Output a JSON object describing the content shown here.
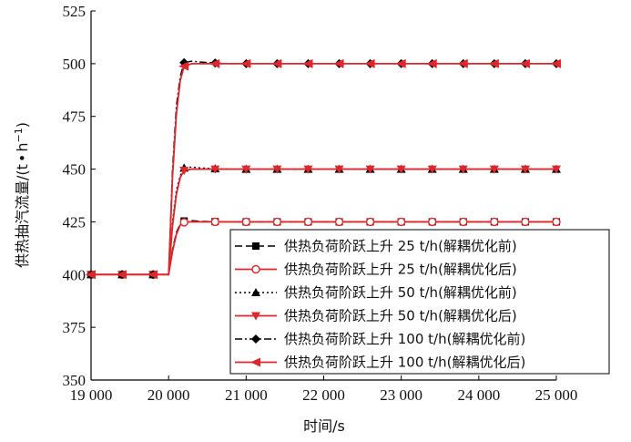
{
  "chart_data": {
    "type": "line",
    "xlabel": "时间/s",
    "ylabel": "供热抽汽流量/(t·h⁻¹)",
    "ylabel_main": "供热抽汽流量/(t",
    "ylabel_dot": "•",
    "ylabel_h": "h",
    "ylabel_sup": "−1",
    "ylabel_close": ")",
    "xlim": [
      19000,
      25000
    ],
    "ylim": [
      350,
      525
    ],
    "x_ticks": [
      19000,
      20000,
      21000,
      22000,
      23000,
      24000,
      25000
    ],
    "x_tick_labels": [
      "19 000",
      "20 000",
      "21 000",
      "22 000",
      "23 000",
      "24 000",
      "25 000"
    ],
    "y_ticks": [
      350,
      375,
      400,
      425,
      450,
      475,
      500,
      525
    ],
    "y_tick_labels": [
      "350",
      "375",
      "400",
      "425",
      "450",
      "475",
      "500",
      "525"
    ],
    "grid": false,
    "legend_position": "lower-right",
    "series": [
      {
        "name": "供热负荷阶跃上升 25 t/h(解耦优化前)",
        "color": "#000000",
        "dash": "8,4",
        "marker": "square",
        "x": [
          19000,
          19400,
          19800,
          20000,
          20050,
          20100,
          20150,
          20200,
          20300,
          20400,
          20600,
          20800,
          21000,
          21400,
          21800,
          22200,
          22600,
          23000,
          23400,
          23800,
          24200,
          24600,
          25000
        ],
        "y": [
          400,
          400,
          400,
          400,
          412,
          420,
          424,
          425.4,
          425.6,
          425.3,
          425.1,
          425,
          425,
          425,
          425,
          425,
          425,
          425,
          425,
          425,
          425,
          425,
          425
        ],
        "marker_x": [
          19000,
          19400,
          19800,
          20200,
          20600,
          21000,
          21400,
          21800,
          22200,
          22600,
          23000,
          23400,
          23800,
          24200,
          24600,
          25000
        ]
      },
      {
        "name": "供热负荷阶跃上升 25 t/h(解耦优化后)",
        "color": "#e0262b",
        "dash": "",
        "marker": "circle-open",
        "x": [
          19000,
          19400,
          19800,
          20000,
          20050,
          20100,
          20150,
          20200,
          20300,
          20400,
          20600,
          20800,
          21000,
          21400,
          21800,
          22200,
          22600,
          23000,
          23400,
          23800,
          24200,
          24600,
          25000
        ],
        "y": [
          400,
          400,
          400,
          400,
          411,
          419,
          423.5,
          424.8,
          425,
          425,
          425,
          425,
          425,
          425,
          425,
          425,
          425,
          425,
          425,
          425,
          425,
          425,
          425
        ],
        "marker_x": [
          19000,
          19400,
          19800,
          20200,
          20600,
          21000,
          21400,
          21800,
          22200,
          22600,
          23000,
          23400,
          23800,
          24200,
          24600,
          25000
        ]
      },
      {
        "name": "供热负荷阶跃上升 50 t/h(解耦优化前)",
        "color": "#000000",
        "dash": "2,3",
        "marker": "triangle-up",
        "x": [
          19000,
          19400,
          19800,
          20000,
          20050,
          20100,
          20150,
          20200,
          20300,
          20400,
          20600,
          20800,
          21000,
          21400,
          21800,
          22200,
          22600,
          23000,
          23400,
          23800,
          24200,
          24600,
          25000
        ],
        "y": [
          400,
          400,
          400,
          400,
          425,
          440,
          447,
          450.5,
          451,
          450.6,
          450.2,
          450,
          450,
          450,
          450,
          450,
          450,
          450,
          450,
          450,
          450,
          450,
          450
        ],
        "marker_x": [
          19000,
          19400,
          19800,
          20200,
          20600,
          21000,
          21400,
          21800,
          22200,
          22600,
          23000,
          23400,
          23800,
          24200,
          24600,
          25000
        ]
      },
      {
        "name": "供热负荷阶跃上升 50 t/h(解耦优化后)",
        "color": "#e0262b",
        "dash": "",
        "marker": "triangle-down",
        "x": [
          19000,
          19400,
          19800,
          20000,
          20050,
          20100,
          20150,
          20200,
          20300,
          20400,
          20600,
          20800,
          21000,
          21400,
          21800,
          22200,
          22600,
          23000,
          23400,
          23800,
          24200,
          24600,
          25000
        ],
        "y": [
          400,
          400,
          400,
          400,
          423,
          438,
          446,
          449.4,
          450,
          450,
          450,
          450,
          450,
          450,
          450,
          450,
          450,
          450,
          450,
          450,
          450,
          450,
          450
        ],
        "marker_x": [
          19000,
          19400,
          19800,
          20200,
          20600,
          21000,
          21400,
          21800,
          22200,
          22600,
          23000,
          23400,
          23800,
          24200,
          24600,
          25000
        ]
      },
      {
        "name": "供热负荷阶跃上升 100 t/h(解耦优化前)",
        "color": "#000000",
        "dash": "8,3,2,3",
        "marker": "diamond",
        "x": [
          19000,
          19400,
          19800,
          20000,
          20050,
          20100,
          20150,
          20200,
          20300,
          20400,
          20600,
          20800,
          21000,
          21400,
          21800,
          22200,
          22600,
          23000,
          23400,
          23800,
          24200,
          24600,
          25000
        ],
        "y": [
          400,
          400,
          400,
          400,
          450,
          480,
          494,
          500.5,
          501.2,
          500.8,
          500.3,
          500,
          500,
          500,
          500,
          500,
          500,
          500,
          500,
          500,
          500,
          500,
          500
        ],
        "marker_x": [
          19000,
          19400,
          19800,
          20200,
          20600,
          21000,
          21400,
          21800,
          22200,
          22600,
          23000,
          23400,
          23800,
          24200,
          24600,
          25000
        ]
      },
      {
        "name": "供热负荷阶跃上升 100 t/h(解耦优化后)",
        "color": "#e0262b",
        "dash": "",
        "marker": "triangle-left",
        "x": [
          19000,
          19400,
          19800,
          20000,
          20050,
          20100,
          20150,
          20200,
          20300,
          20400,
          20600,
          20800,
          21000,
          21400,
          21800,
          22200,
          22600,
          23000,
          23400,
          23800,
          24200,
          24600,
          25000
        ],
        "y": [
          400,
          400,
          400,
          400,
          446,
          476,
          492,
          498.8,
          500,
          500,
          500,
          500,
          500,
          500,
          500,
          500,
          500,
          500,
          500,
          500,
          500,
          500,
          500
        ],
        "marker_x": [
          19000,
          19400,
          19800,
          20200,
          20600,
          21000,
          21400,
          21800,
          22200,
          22600,
          23000,
          23400,
          23800,
          24200,
          24600,
          25000
        ]
      }
    ]
  }
}
